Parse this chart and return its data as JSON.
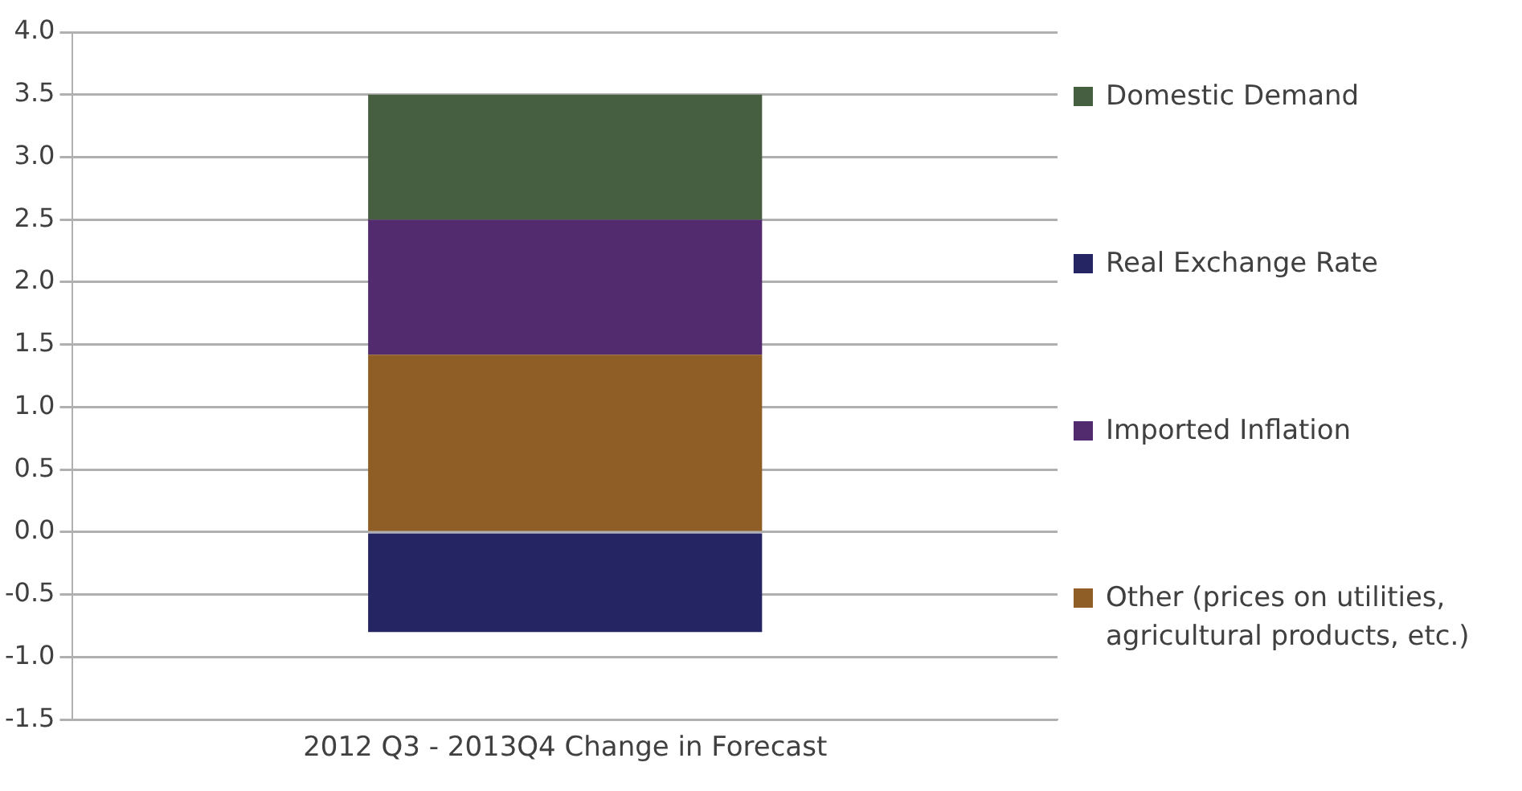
{
  "chart_data": {
    "type": "bar",
    "stacked": true,
    "categories": [
      "2012 Q3 - 2013Q4 Change in Forecast"
    ],
    "series": [
      {
        "name": "Other (prices on utilities, agricultural products, etc.)",
        "color": "#8f5d26",
        "values": [
          1.42
        ]
      },
      {
        "name": "Imported Inflation",
        "color": "#522a6e",
        "values": [
          1.08
        ]
      },
      {
        "name": "Real Exchange Rate",
        "color": "#262564",
        "values": [
          -0.8
        ]
      },
      {
        "name": "Domestic Demand",
        "color": "#475f41",
        "values": [
          1.0
        ]
      }
    ],
    "ylim": [
      -1.5,
      4.0
    ],
    "yticks": [
      -1.5,
      {
        "value": -1,
        "label": "-1.0"
      },
      -0.5,
      {
        "value": 0,
        "label": "0.0"
      },
      0.5,
      {
        "value": 1,
        "label": "1.0"
      },
      1.5,
      {
        "value": 2,
        "label": "2.0"
      },
      2.5,
      {
        "value": 3,
        "label": "3.0"
      },
      3.5,
      {
        "value": 4,
        "label": "4.0"
      }
    ],
    "grid": "y",
    "legend": "right"
  }
}
